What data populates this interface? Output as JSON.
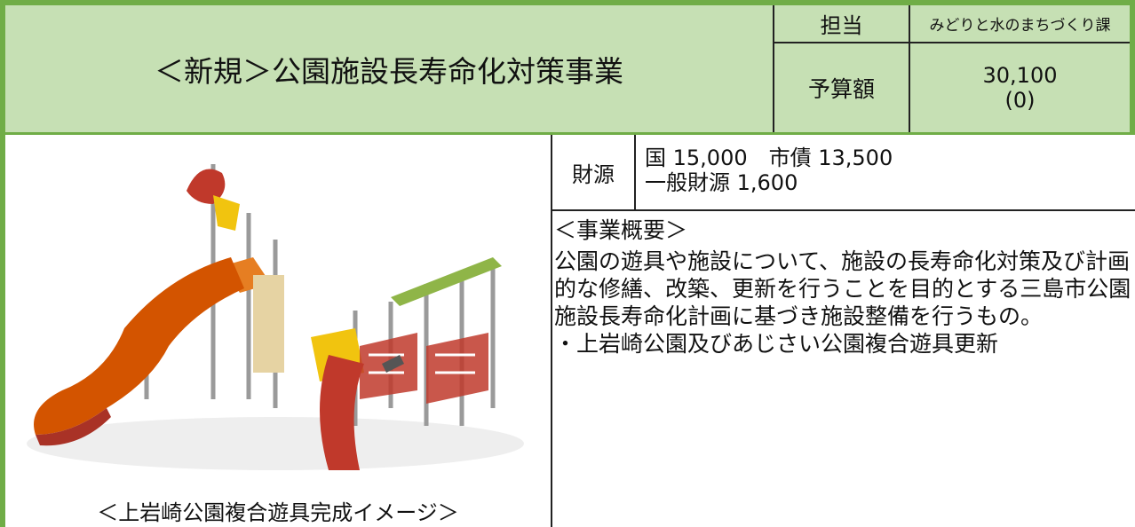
{
  "header": {
    "title": "＜新規＞公園施設長寿命化対策事業",
    "tanto_label": "担当",
    "tanto_value": "みどりと水のまちづくり課",
    "budget_label": "予算額",
    "budget_value": "30,100",
    "budget_prev": "(0)"
  },
  "funding": {
    "label": "財源",
    "lines": [
      "国 15,000　市債 13,500",
      "一般財源 1,600"
    ]
  },
  "overview": {
    "heading": "＜事業概要＞",
    "body": "公園の遊具や施設について、施設の長寿命化対策及び計画的な修繕、改築、更新を行うことを目的とする三島市公園施設長寿命化計画に基づき施設整備を行うもの。",
    "bullet": "・上岩崎公園及びあじさい公園複合遊具更新"
  },
  "image": {
    "caption": "＜上岩崎公園複合遊具完成イメージ＞"
  }
}
